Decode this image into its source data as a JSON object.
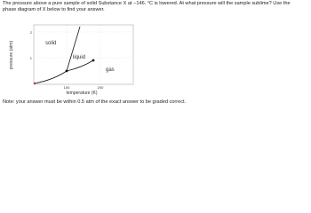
{
  "question": {
    "text": "The pressure above a pure sample of solid Substance X at −146. °C is lowered. At what pressure will the sample sublime? Use the phase diagram of X below to find your answer."
  },
  "diagram": {
    "y_label": "pressure (atm)",
    "x_label": "temperature (K)",
    "y_ticks": [
      "2",
      "1"
    ],
    "x_ticks": [
      "100",
      "200"
    ],
    "regions": [
      "solid",
      "liquid",
      "gas"
    ]
  },
  "note": {
    "text": "Note: your answer must be within 0.5 atm of the exact answer to be graded correct."
  }
}
